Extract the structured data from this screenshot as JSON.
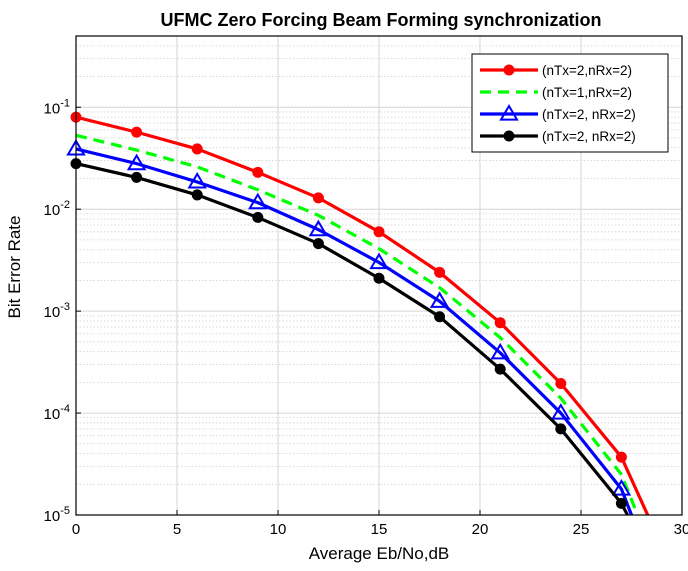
{
  "chart_data": {
    "type": "line",
    "title": "UFMC Zero Forcing Beam Forming synchronization",
    "xlabel": "Average Eb/No,dB",
    "ylabel": "Bit Error Rate",
    "xlim": [
      0,
      30
    ],
    "ylim": [
      1e-05,
      0.5
    ],
    "yscale": "log",
    "grid": true,
    "legend_position": "top-right",
    "x_ticks": [
      "0",
      "5",
      "10",
      "15",
      "20",
      "25",
      "30"
    ],
    "y_ticks": [
      {
        "base": "10",
        "exp": "-1",
        "value": 0.1
      },
      {
        "base": "10",
        "exp": "-2",
        "value": 0.01
      },
      {
        "base": "10",
        "exp": "-3",
        "value": 0.001
      },
      {
        "base": "10",
        "exp": "-4",
        "value": 0.0001
      },
      {
        "base": "10",
        "exp": "-5",
        "value": 1e-05
      }
    ],
    "series": [
      {
        "name": "(nTx=2,nRx=2)",
        "color": "#ff0000",
        "line": "solid",
        "marker": "circle",
        "x": [
          0,
          3,
          6,
          9,
          12,
          15,
          18,
          21,
          24,
          27,
          28.3
        ],
        "y": [
          0.08,
          0.057,
          0.039,
          0.023,
          0.0129,
          0.006,
          0.0024,
          0.00077,
          0.000195,
          3.7e-05,
          1e-05
        ]
      },
      {
        "name": "(nTx=1,nRx=2)",
        "color": "#00ff00",
        "line": "dashed",
        "marker": "none",
        "x": [
          0,
          3,
          6,
          9,
          12,
          15,
          18,
          21,
          24,
          27,
          27.8
        ],
        "y": [
          0.053,
          0.038,
          0.026,
          0.0155,
          0.0087,
          0.0041,
          0.0017,
          0.00055,
          0.00014,
          2.5e-05,
          1e-05
        ]
      },
      {
        "name": "(nTx=2, nRx=2)",
        "color": "#0000ff",
        "line": "solid",
        "marker": "triangle",
        "x": [
          0,
          3,
          6,
          9,
          12,
          15,
          18,
          21,
          24,
          27,
          27.5
        ],
        "y": [
          0.039,
          0.028,
          0.0185,
          0.0116,
          0.0063,
          0.003,
          0.00125,
          0.00039,
          0.0001,
          1.8e-05,
          1e-05
        ]
      },
      {
        "name": "(nTx=2, nRx=2)",
        "color": "#000000",
        "line": "solid",
        "marker": "circle",
        "x": [
          0,
          3,
          6,
          9,
          12,
          15,
          18,
          21,
          24,
          27,
          27.3
        ],
        "y": [
          0.028,
          0.0205,
          0.0138,
          0.0083,
          0.0046,
          0.0021,
          0.00088,
          0.00027,
          7e-05,
          1.3e-05,
          1e-05
        ]
      }
    ]
  }
}
